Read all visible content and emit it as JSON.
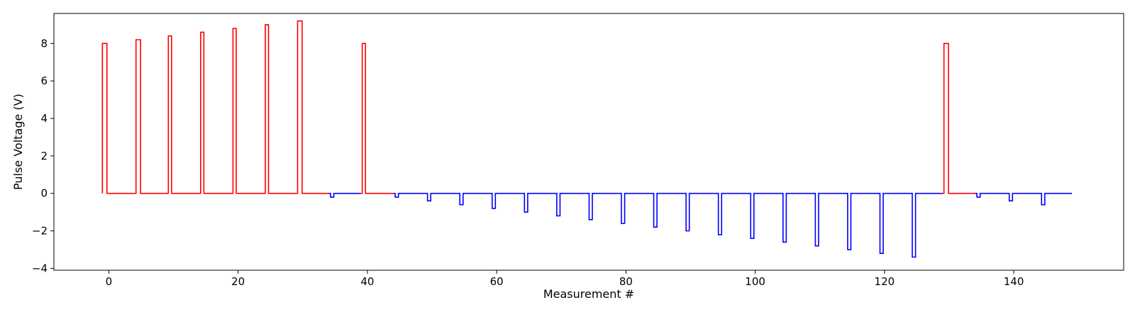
{
  "chart_data": {
    "type": "line",
    "title": "",
    "xlabel": "Measurement #",
    "ylabel": "Pulse Voltage (V)",
    "xlim": [
      -8.5,
      157
    ],
    "ylim": [
      -4.1,
      9.6
    ],
    "xticks": [
      0,
      20,
      40,
      60,
      80,
      100,
      120,
      140
    ],
    "yticks": [
      -4,
      -2,
      0,
      2,
      4,
      6,
      8
    ],
    "xtick_labels": [
      "0",
      "20",
      "40",
      "60",
      "80",
      "100",
      "120",
      "140"
    ],
    "ytick_labels": [
      "−4",
      "−2",
      "0",
      "2",
      "4",
      "6",
      "8"
    ],
    "grid": false,
    "legend": "none",
    "baseline": 0,
    "series": [
      {
        "color": "#ff0000",
        "segments": [
          {
            "x_start": -1,
            "x_end": 34,
            "pulses": [
              {
                "x": -1,
                "x2": -0.3,
                "v": 8.0
              },
              {
                "x": 4.2,
                "x2": 4.9,
                "v": 8.2
              },
              {
                "x": 9.2,
                "x2": 9.7,
                "v": 8.4
              },
              {
                "x": 14.2,
                "x2": 14.7,
                "v": 8.6
              },
              {
                "x": 19.2,
                "x2": 19.7,
                "v": 8.8
              },
              {
                "x": 24.2,
                "x2": 24.7,
                "v": 9.0
              },
              {
                "x": 29.2,
                "x2": 29.9,
                "v": 9.2
              }
            ]
          },
          {
            "x_start": 39,
            "x_end": 44,
            "pulses": [
              {
                "x": 39.2,
                "x2": 39.7,
                "v": 8.0
              }
            ]
          },
          {
            "x_start": 129,
            "x_end": 134,
            "pulses": [
              {
                "x": 129.2,
                "x2": 129.9,
                "v": 8.0
              }
            ]
          }
        ]
      },
      {
        "color": "#0000ff",
        "segments": [
          {
            "x_start": 34,
            "x_end": 39,
            "pulses": [
              {
                "x": 34.3,
                "x2": 34.8,
                "v": -0.2
              }
            ]
          },
          {
            "x_start": 44,
            "x_end": 129,
            "pulses": [
              {
                "x": 44.3,
                "x2": 44.8,
                "v": -0.2
              },
              {
                "x": 49.3,
                "x2": 49.8,
                "v": -0.4
              },
              {
                "x": 54.3,
                "x2": 54.8,
                "v": -0.6
              },
              {
                "x": 59.3,
                "x2": 59.8,
                "v": -0.8
              },
              {
                "x": 64.3,
                "x2": 64.8,
                "v": -1.0
              },
              {
                "x": 69.3,
                "x2": 69.8,
                "v": -1.2
              },
              {
                "x": 74.3,
                "x2": 74.8,
                "v": -1.4
              },
              {
                "x": 79.3,
                "x2": 79.8,
                "v": -1.6
              },
              {
                "x": 84.3,
                "x2": 84.8,
                "v": -1.8
              },
              {
                "x": 89.3,
                "x2": 89.8,
                "v": -2.0
              },
              {
                "x": 94.3,
                "x2": 94.8,
                "v": -2.2
              },
              {
                "x": 99.3,
                "x2": 99.8,
                "v": -2.4
              },
              {
                "x": 104.3,
                "x2": 104.8,
                "v": -2.6
              },
              {
                "x": 109.3,
                "x2": 109.8,
                "v": -2.8
              },
              {
                "x": 114.3,
                "x2": 114.8,
                "v": -3.0
              },
              {
                "x": 119.3,
                "x2": 119.8,
                "v": -3.2
              },
              {
                "x": 124.3,
                "x2": 124.8,
                "v": -3.4
              }
            ]
          },
          {
            "x_start": 134,
            "x_end": 149,
            "pulses": [
              {
                "x": 134.3,
                "x2": 134.8,
                "v": -0.2
              },
              {
                "x": 139.3,
                "x2": 139.8,
                "v": -0.4
              },
              {
                "x": 144.3,
                "x2": 144.8,
                "v": -0.6
              }
            ]
          }
        ]
      }
    ]
  }
}
